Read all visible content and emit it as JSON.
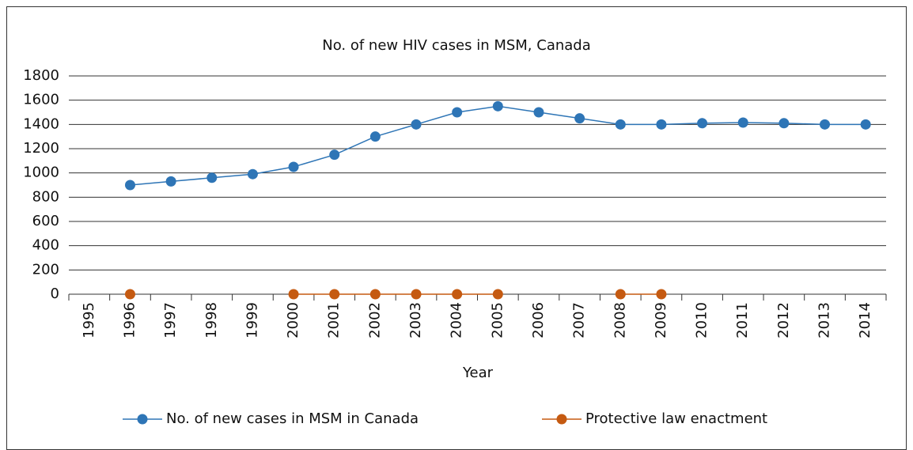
{
  "chart_data": {
    "type": "line",
    "title": "No. of new HIV cases in MSM, Canada",
    "x_label": "Year",
    "categories": [
      "1995",
      "1996",
      "1997",
      "1998",
      "1999",
      "2000",
      "2001",
      "2002",
      "2003",
      "2004",
      "2005",
      "2006",
      "2007",
      "2008",
      "2009",
      "2010",
      "2011",
      "2012",
      "2013",
      "2014"
    ],
    "series": [
      {
        "name": "No. of new cases in MSM in Canada",
        "color": "#2e75b6",
        "values": [
          null,
          900,
          930,
          960,
          990,
          1050,
          1150,
          1300,
          1400,
          1500,
          1550,
          1500,
          1450,
          1400,
          1400,
          1410,
          1415,
          1410,
          1400,
          1400
        ]
      },
      {
        "name": "Protective law enactment",
        "color": "#c55a11",
        "values": [
          null,
          0,
          null,
          null,
          null,
          0,
          0,
          0,
          0,
          0,
          0,
          null,
          null,
          0,
          0,
          null,
          null,
          null,
          null,
          null
        ]
      }
    ],
    "ylim": [
      0,
      1800
    ],
    "yticks": [
      0,
      200,
      400,
      600,
      800,
      1000,
      1200,
      1400,
      1600,
      1800
    ],
    "grid": true,
    "legend": "bottom"
  }
}
